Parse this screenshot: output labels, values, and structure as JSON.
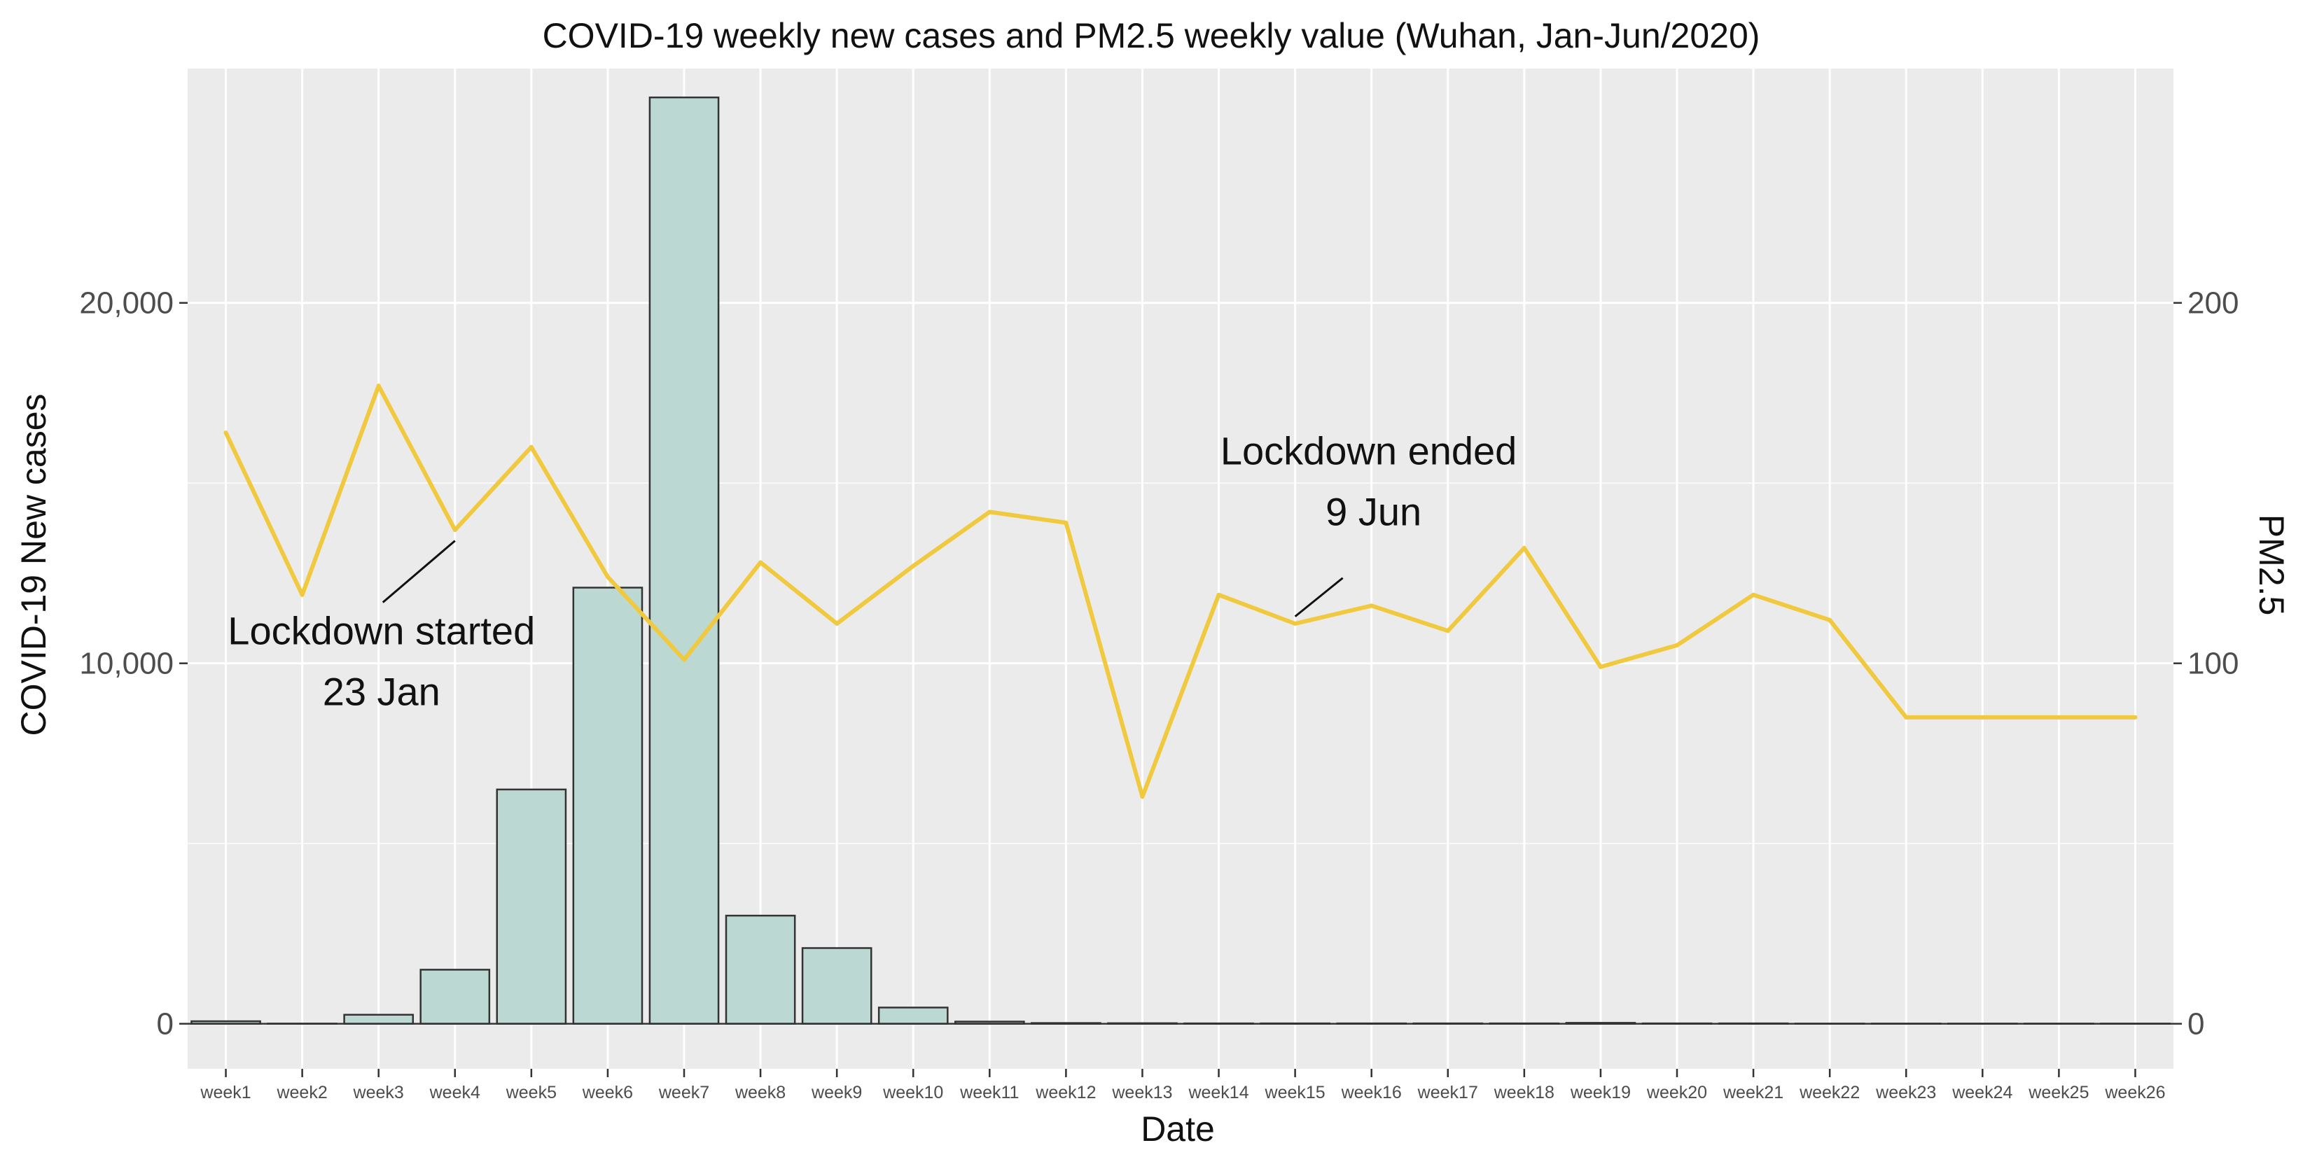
{
  "chart_data": {
    "type": "bar",
    "title": "COVID-19 weekly new cases and PM2.5 weekly value (Wuhan, Jan-Jun/2020)",
    "xlabel": "Date",
    "ylabel_left": "COVID-19 New cases",
    "ylabel_right": "PM2.5",
    "ylim_left": [
      -1250,
      26500
    ],
    "ylim_right": [
      -12.5,
      265
    ],
    "yticks_left": [
      {
        "value": 0,
        "label": "0"
      },
      {
        "value": 10000,
        "label": "10,000"
      },
      {
        "value": 20000,
        "label": "20,000"
      }
    ],
    "yticks_right": [
      {
        "value": 0,
        "label": "0"
      },
      {
        "value": 100,
        "label": "100"
      },
      {
        "value": 200,
        "label": "200"
      }
    ],
    "grid": true,
    "categories": [
      "week1",
      "week2",
      "week3",
      "week4",
      "week5",
      "week6",
      "week7",
      "week8",
      "week9",
      "week10",
      "week11",
      "week12",
      "week13",
      "week14",
      "week15",
      "week16",
      "week17",
      "week18",
      "week19",
      "week20",
      "week21",
      "week22",
      "week23",
      "week24",
      "week25",
      "week26"
    ],
    "series": [
      {
        "type": "bar",
        "axis": "left",
        "color": "#bcd8d3",
        "values": [
          70,
          5,
          250,
          1500,
          6500,
          12100,
          25700,
          3000,
          2100,
          450,
          60,
          20,
          15,
          10,
          10,
          10,
          10,
          10,
          25,
          10,
          10,
          5,
          5,
          5,
          5,
          5
        ]
      },
      {
        "type": "line",
        "axis": "right",
        "color": "#f0c93f",
        "values": [
          164,
          119,
          177,
          137,
          160,
          124,
          101,
          128,
          111,
          127,
          142,
          139,
          63,
          119,
          111,
          116,
          109,
          132,
          99,
          105,
          119,
          112,
          85,
          85,
          85,
          85
        ]
      }
    ],
    "annotations": [
      {
        "lines": [
          "Lockdown started",
          "23 Jan"
        ],
        "category": "week4",
        "value_right": 134
      },
      {
        "lines": [
          "Lockdown ended",
          "9 Jun"
        ],
        "category": "week15",
        "value_right": 113
      }
    ]
  }
}
